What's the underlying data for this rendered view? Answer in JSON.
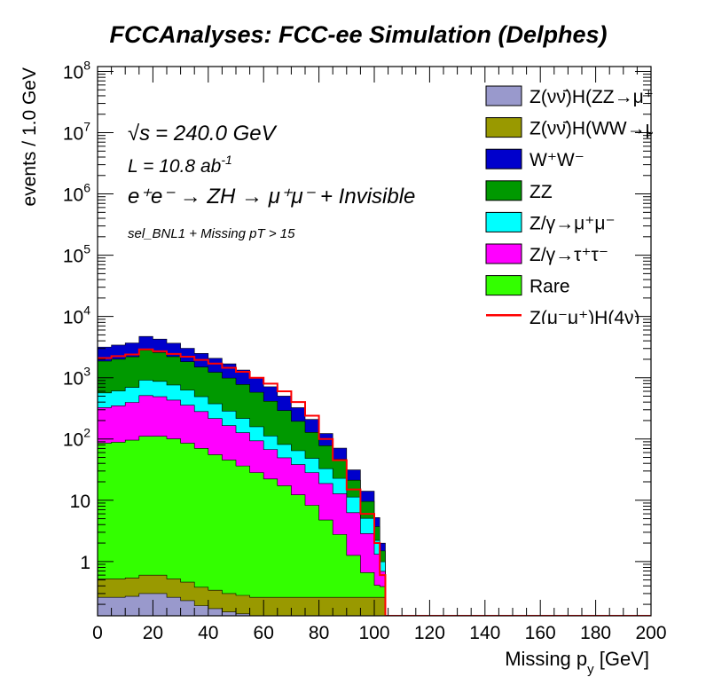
{
  "chart_data": {
    "type": "area",
    "title": "FCCAnalyses: FCC-ee Simulation (Delphes)",
    "xlabel": "Missing p_y [GeV]",
    "ylabel": "events / 1.0 GeV",
    "xlim": [
      0,
      200
    ],
    "ylim": [
      0.13,
      120000000
    ],
    "y_scale": "log",
    "grid": false,
    "legend_position": "top-right",
    "x_ticks": [
      "0",
      "20",
      "40",
      "60",
      "80",
      "100",
      "120",
      "140",
      "160",
      "180",
      "200"
    ],
    "y_ticks": [
      {
        "base": "1",
        "exp": ""
      },
      {
        "base": "10",
        "exp": ""
      },
      {
        "base": "10",
        "exp": "2"
      },
      {
        "base": "10",
        "exp": "3"
      },
      {
        "base": "10",
        "exp": "4"
      },
      {
        "base": "10",
        "exp": "5"
      },
      {
        "base": "10",
        "exp": "6"
      },
      {
        "base": "10",
        "exp": "7"
      },
      {
        "base": "10",
        "exp": "8"
      }
    ],
    "annotations": {
      "sqrt_s": "= 240.0 GeV",
      "lumi": "L = 10.8 ab",
      "lumi_exp": "-1",
      "process": "e⁺e⁻ → ZH → μ⁺μ⁻ + Invisible",
      "selection": "sel_BNL1 + Missing pT > 15"
    },
    "x": [
      0,
      5,
      10,
      15,
      20,
      25,
      30,
      35,
      40,
      45,
      50,
      55,
      60,
      65,
      70,
      75,
      80,
      85,
      90,
      95,
      100,
      102,
      104
    ],
    "series": [
      {
        "name": "Z(νν̄)H(ZZ→μ⁺μ⁻ν⁺ν)",
        "color": "#9999cc",
        "values": [
          0.26,
          0.26,
          0.27,
          0.3,
          0.3,
          0.26,
          0.23,
          0.19,
          0.17,
          0.15,
          0.14,
          0.13,
          0.13,
          0.13,
          0.13,
          0.13,
          0.13,
          0.13,
          0.13,
          0.13,
          0.13,
          0.13,
          0.13
        ]
      },
      {
        "name": "Z(νν̄)H(WW→μ⁺νμ⁻ν)",
        "color": "#999900",
        "values": [
          0.26,
          0.26,
          0.27,
          0.3,
          0.3,
          0.26,
          0.23,
          0.19,
          0.17,
          0.15,
          0.14,
          0.13,
          0.13,
          0.13,
          0.13,
          0.13,
          0.13,
          0.13,
          0.13,
          0.13,
          0.13,
          0.13,
          0.13
        ]
      },
      {
        "name": "Rare",
        "color": "#33ff00",
        "values": [
          85,
          88,
          95,
          110,
          110,
          100,
          85,
          70,
          55,
          45,
          36,
          28,
          22,
          17,
          12,
          8,
          4.5,
          2.5,
          1,
          0.4,
          0.15,
          0.13,
          0.13
        ]
      },
      {
        "name": "Z/γ→τ⁺τ⁻",
        "color": "#ff00ff",
        "values": [
          240,
          260,
          300,
          400,
          380,
          330,
          270,
          210,
          160,
          120,
          90,
          65,
          45,
          32,
          26,
          20,
          14,
          10,
          5,
          2.2,
          0.9,
          0.3,
          0.13
        ]
      },
      {
        "name": "Z/γ→μ⁺μ⁻",
        "color": "#00ffff",
        "values": [
          240,
          260,
          300,
          400,
          380,
          330,
          270,
          210,
          160,
          120,
          90,
          65,
          45,
          32,
          26,
          20,
          14,
          10,
          5,
          2.2,
          0.9,
          0.3,
          0.13
        ]
      },
      {
        "name": "ZZ",
        "color": "#009900",
        "values": [
          1300,
          1400,
          1500,
          1900,
          1700,
          1450,
          1200,
          1000,
          850,
          700,
          560,
          420,
          300,
          210,
          130,
          80,
          45,
          24,
          10,
          4.5,
          1.5,
          0.5,
          0.13
        ]
      },
      {
        "name": "W⁺W⁻",
        "color": "#0000cc",
        "values": [
          1300,
          1400,
          1500,
          1900,
          1700,
          1450,
          1200,
          1000,
          850,
          700,
          560,
          420,
          300,
          210,
          130,
          80,
          45,
          24,
          10,
          4.5,
          1.5,
          0.5,
          0.13
        ]
      }
    ],
    "total": {
      "name": "Z(μ⁻μ⁺)H(4ν)",
      "color": "#ff0000",
      "values": [
        2100,
        2250,
        2400,
        2900,
        2700,
        2450,
        2200,
        1950,
        1700,
        1450,
        1250,
        1000,
        800,
        600,
        400,
        240,
        100,
        45,
        15,
        6,
        2,
        0.6,
        0.13
      ]
    },
    "legend": [
      {
        "label": "Z(νν̄)H(ZZ→μ⁺μ⁻ν⁺ν)",
        "color": "#9999cc",
        "kind": "box"
      },
      {
        "label": "Z(νν̄)H(WW→μ⁺νμ⁻ν)",
        "color": "#999900",
        "kind": "box"
      },
      {
        "label": "W⁺W⁻",
        "color": "#0000cc",
        "kind": "box"
      },
      {
        "label": "ZZ",
        "color": "#009900",
        "kind": "box"
      },
      {
        "label": "Z/γ→μ⁺μ⁻",
        "color": "#00ffff",
        "kind": "box"
      },
      {
        "label": "Z/γ→τ⁺τ⁻",
        "color": "#ff00ff",
        "kind": "box"
      },
      {
        "label": "Rare",
        "color": "#33ff00",
        "kind": "box"
      },
      {
        "label": "Z(μ⁻μ⁺)H(4ν)",
        "color": "#ff0000",
        "kind": "line"
      }
    ]
  }
}
